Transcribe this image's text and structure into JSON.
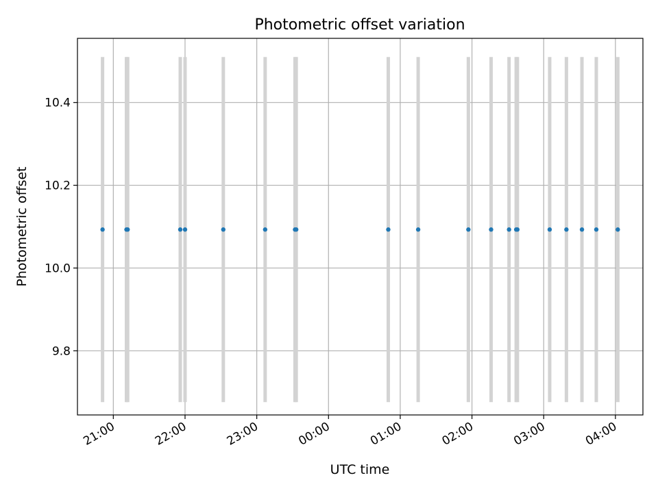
{
  "chart_data": {
    "type": "scatter",
    "title": "Photometric offset variation",
    "xlabel": "UTC time",
    "ylabel": "Photometric offset",
    "grid": true,
    "x_axis_kind": "time",
    "xlim": [
      "20:30",
      "04:23"
    ],
    "ylim": [
      9.645,
      10.555
    ],
    "yticks": [
      9.8,
      10.0,
      10.2,
      10.4
    ],
    "ytick_labels": [
      "9.8",
      "10.0",
      "10.2",
      "10.4"
    ],
    "xticks": [
      "21:00",
      "22:00",
      "23:00",
      "00:00",
      "01:00",
      "02:00",
      "03:00",
      "04:00"
    ],
    "xtick_labels": [
      "21:00",
      "22:00",
      "23:00",
      "00:00",
      "01:00",
      "02:00",
      "03:00",
      "04:00"
    ],
    "xtick_rotation": 30,
    "marker_color": "#1f77b4",
    "errorbar_color": "#d3d3d3",
    "points": [
      {
        "time": "20:51",
        "y": 10.093,
        "yerr": 0.417
      },
      {
        "time": "21:11",
        "y": 10.093,
        "yerr": 0.417
      },
      {
        "time": "21:12",
        "y": 10.093,
        "yerr": 0.417
      },
      {
        "time": "21:56",
        "y": 10.093,
        "yerr": 0.417
      },
      {
        "time": "22:00",
        "y": 10.093,
        "yerr": 0.417
      },
      {
        "time": "22:32",
        "y": 10.093,
        "yerr": 0.417
      },
      {
        "time": "23:07",
        "y": 10.093,
        "yerr": 0.417
      },
      {
        "time": "23:32",
        "y": 10.093,
        "yerr": 0.417
      },
      {
        "time": "23:33",
        "y": 10.093,
        "yerr": 0.417
      },
      {
        "time": "00:50",
        "y": 10.093,
        "yerr": 0.417
      },
      {
        "time": "01:15",
        "y": 10.093,
        "yerr": 0.417
      },
      {
        "time": "01:57",
        "y": 10.093,
        "yerr": 0.417
      },
      {
        "time": "02:16",
        "y": 10.093,
        "yerr": 0.417
      },
      {
        "time": "02:31",
        "y": 10.093,
        "yerr": 0.417
      },
      {
        "time": "02:37",
        "y": 10.093,
        "yerr": 0.417
      },
      {
        "time": "02:38",
        "y": 10.093,
        "yerr": 0.417
      },
      {
        "time": "03:05",
        "y": 10.093,
        "yerr": 0.417
      },
      {
        "time": "03:19",
        "y": 10.093,
        "yerr": 0.417
      },
      {
        "time": "03:32",
        "y": 10.093,
        "yerr": 0.417
      },
      {
        "time": "03:44",
        "y": 10.093,
        "yerr": 0.417
      },
      {
        "time": "04:02",
        "y": 10.093,
        "yerr": 0.417
      }
    ]
  }
}
